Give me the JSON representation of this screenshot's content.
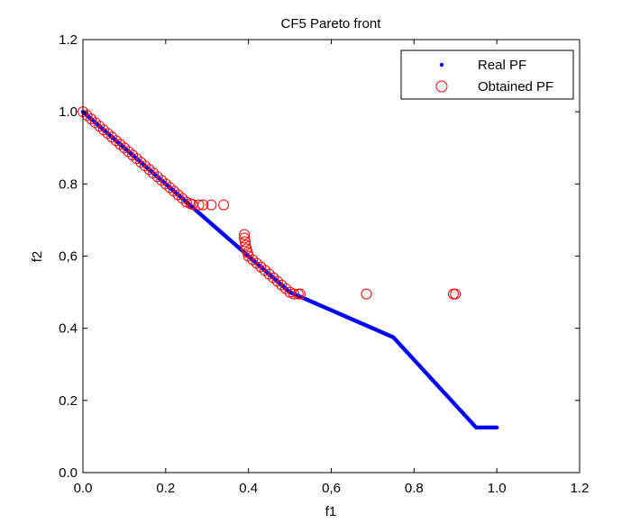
{
  "chart_data": {
    "type": "scatter",
    "title": "CF5 Pareto front",
    "xlabel": "f1",
    "ylabel": "f2",
    "xlim": [
      0,
      1.2
    ],
    "ylim": [
      0,
      1.2
    ],
    "xticks": [
      {
        "value": 0,
        "label": "0.0"
      },
      {
        "value": 0.2,
        "label": "0.2"
      },
      {
        "value": 0.4,
        "label": "0.4"
      },
      {
        "value": 0.6,
        "label": "0,6"
      },
      {
        "value": 0.8,
        "label": "0.8"
      },
      {
        "value": 1.0,
        "label": "1.0"
      },
      {
        "value": 1.2,
        "label": "1.2"
      }
    ],
    "yticks": [
      {
        "value": 0,
        "label": "0.0"
      },
      {
        "value": 0.2,
        "label": "0.2"
      },
      {
        "value": 0.4,
        "label": "0.4"
      },
      {
        "value": 0.6,
        "label": "0,6"
      },
      {
        "value": 0.8,
        "label": "0.8"
      },
      {
        "value": 1.0,
        "label": "1.0"
      },
      {
        "value": 1.2,
        "label": "1.2"
      }
    ],
    "grid": false,
    "legend_position": "top-right",
    "series": [
      {
        "name": "Real PF",
        "marker": "dot",
        "color": "#0000ff",
        "x": [
          0,
          0.05,
          0.1,
          0.15,
          0.2,
          0.25,
          0.3,
          0.35,
          0.4,
          0.45,
          0.5,
          0.55,
          0.6,
          0.65,
          0.7,
          0.75,
          0.8,
          0.85,
          0.9,
          0.95,
          1.0
        ],
        "y": [
          1.0,
          0.95,
          0.9,
          0.85,
          0.8,
          0.75,
          0.7,
          0.65,
          0.6,
          0.55,
          0.5,
          0.475,
          0.45,
          0.425,
          0.4,
          0.375,
          0.3125,
          0.25,
          0.1875,
          0.125,
          0.125
        ]
      },
      {
        "name": "Obtained PF",
        "marker": "circle",
        "color": "#ff0000",
        "x": [
          0.0,
          0.01,
          0.02,
          0.03,
          0.04,
          0.05,
          0.06,
          0.07,
          0.08,
          0.09,
          0.1,
          0.11,
          0.12,
          0.13,
          0.14,
          0.15,
          0.16,
          0.17,
          0.18,
          0.19,
          0.2,
          0.21,
          0.22,
          0.23,
          0.24,
          0.25,
          0.26,
          0.265,
          0.28,
          0.29,
          0.31,
          0.34,
          0.39,
          0.39,
          0.392,
          0.393,
          0.395,
          0.398,
          0.4,
          0.41,
          0.42,
          0.43,
          0.44,
          0.45,
          0.46,
          0.47,
          0.48,
          0.49,
          0.5,
          0.51,
          0.52,
          0.525,
          0.685,
          0.895,
          0.9
        ],
        "y": [
          1.0,
          0.99,
          0.98,
          0.97,
          0.96,
          0.95,
          0.94,
          0.93,
          0.92,
          0.91,
          0.9,
          0.89,
          0.88,
          0.87,
          0.86,
          0.85,
          0.84,
          0.83,
          0.82,
          0.81,
          0.8,
          0.79,
          0.78,
          0.77,
          0.76,
          0.75,
          0.745,
          0.743,
          0.742,
          0.742,
          0.742,
          0.742,
          0.66,
          0.65,
          0.64,
          0.63,
          0.62,
          0.61,
          0.6,
          0.59,
          0.58,
          0.57,
          0.56,
          0.55,
          0.54,
          0.53,
          0.52,
          0.51,
          0.5,
          0.495,
          0.495,
          0.495,
          0.495,
          0.495,
          0.495
        ]
      }
    ]
  }
}
